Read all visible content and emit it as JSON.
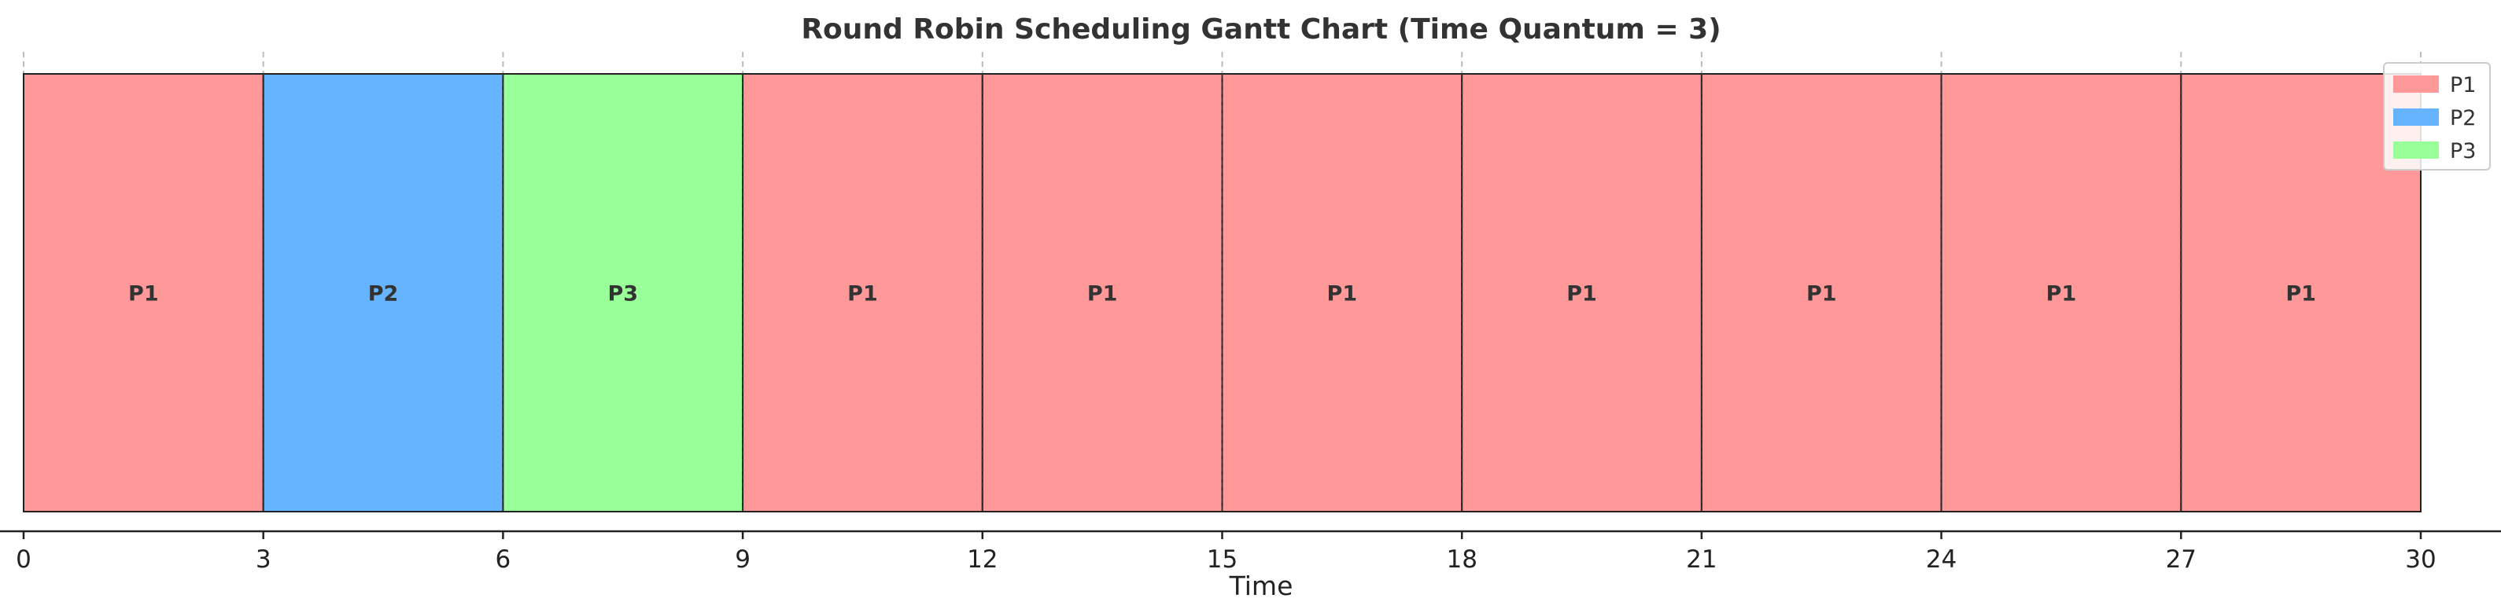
{
  "chart_data": {
    "type": "gantt",
    "title": "Round Robin Scheduling Gantt Chart (Time Quantum = 3)",
    "xlabel": "Time",
    "xlim": [
      0,
      30
    ],
    "xticks": [
      "0",
      "3",
      "6",
      "9",
      "12",
      "15",
      "18",
      "21",
      "24",
      "27",
      "30"
    ],
    "grid": "vertical dashed at ticks",
    "legend_position": "top-right",
    "legend": [
      {
        "name": "P1",
        "color": "#ff9999"
      },
      {
        "name": "P2",
        "color": "#66b3ff"
      },
      {
        "name": "P3",
        "color": "#99ff99"
      }
    ],
    "segments": [
      {
        "process": "P1",
        "start": 0,
        "end": 3
      },
      {
        "process": "P2",
        "start": 3,
        "end": 6
      },
      {
        "process": "P3",
        "start": 6,
        "end": 9
      },
      {
        "process": "P1",
        "start": 9,
        "end": 12
      },
      {
        "process": "P1",
        "start": 12,
        "end": 15
      },
      {
        "process": "P1",
        "start": 15,
        "end": 18
      },
      {
        "process": "P1",
        "start": 18,
        "end": 21
      },
      {
        "process": "P1",
        "start": 21,
        "end": 24
      },
      {
        "process": "P1",
        "start": 24,
        "end": 27
      },
      {
        "process": "P1",
        "start": 27,
        "end": 30
      }
    ]
  }
}
